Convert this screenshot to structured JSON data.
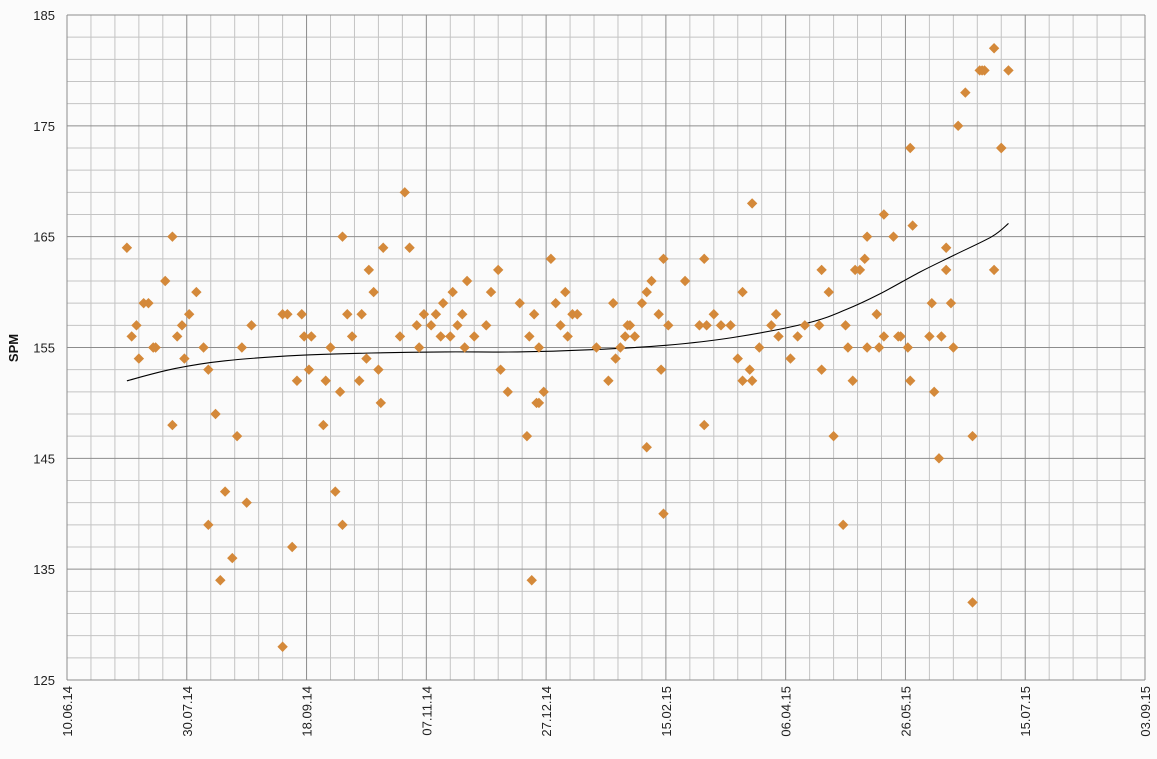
{
  "chart_data": {
    "type": "scatter",
    "ylabel": "SPM",
    "ylim": [
      125,
      185
    ],
    "y_ticks": [
      "125",
      "135",
      "145",
      "155",
      "165",
      "175",
      "185"
    ],
    "xlim": [
      "2014-06-10",
      "2015-09-03"
    ],
    "x_ticks": [
      "10.06.14",
      "30.07.14",
      "18.09.14",
      "07.11.14",
      "27.12.14",
      "15.02.15",
      "06.04.15",
      "26.05.15",
      "15.07.15",
      "03.09.15"
    ],
    "grid": true,
    "marker": "diamond",
    "colors": {
      "points": "#d4893a",
      "trend": "#000000",
      "grid_major": "#8c8c8c",
      "grid_minor": "#c4c4c4"
    },
    "series": [
      {
        "points": [
          [
            "2014-07-05",
            164
          ],
          [
            "2014-07-07",
            156
          ],
          [
            "2014-07-09",
            157
          ],
          [
            "2014-07-10",
            154
          ],
          [
            "2014-07-12",
            159
          ],
          [
            "2014-07-14",
            159
          ],
          [
            "2014-07-16",
            155
          ],
          [
            "2014-07-17",
            155
          ],
          [
            "2014-07-21",
            161
          ],
          [
            "2014-07-24",
            165
          ],
          [
            "2014-07-24",
            148
          ],
          [
            "2014-07-26",
            156
          ],
          [
            "2014-07-28",
            157
          ],
          [
            "2014-07-29",
            154
          ],
          [
            "2014-07-31",
            158
          ],
          [
            "2014-08-03",
            160
          ],
          [
            "2014-08-06",
            155
          ],
          [
            "2014-08-08",
            153
          ],
          [
            "2014-08-08",
            139
          ],
          [
            "2014-08-11",
            149
          ],
          [
            "2014-08-13",
            134
          ],
          [
            "2014-08-15",
            142
          ],
          [
            "2014-08-18",
            136
          ],
          [
            "2014-08-20",
            147
          ],
          [
            "2014-08-22",
            155
          ],
          [
            "2014-08-24",
            141
          ],
          [
            "2014-08-26",
            157
          ],
          [
            "2014-09-08",
            158
          ],
          [
            "2014-09-08",
            128
          ],
          [
            "2014-09-10",
            158
          ],
          [
            "2014-09-12",
            137
          ],
          [
            "2014-09-14",
            152
          ],
          [
            "2014-09-16",
            158
          ],
          [
            "2014-09-17",
            156
          ],
          [
            "2014-09-19",
            153
          ],
          [
            "2014-09-20",
            156
          ],
          [
            "2014-09-25",
            148
          ],
          [
            "2014-09-26",
            152
          ],
          [
            "2014-09-28",
            155
          ],
          [
            "2014-09-30",
            142
          ],
          [
            "2014-10-02",
            151
          ],
          [
            "2014-10-03",
            165
          ],
          [
            "2014-10-03",
            139
          ],
          [
            "2014-10-05",
            158
          ],
          [
            "2014-10-07",
            156
          ],
          [
            "2014-10-10",
            152
          ],
          [
            "2014-10-11",
            158
          ],
          [
            "2014-10-13",
            154
          ],
          [
            "2014-10-14",
            162
          ],
          [
            "2014-10-16",
            160
          ],
          [
            "2014-10-18",
            153
          ],
          [
            "2014-10-19",
            150
          ],
          [
            "2014-10-20",
            164
          ],
          [
            "2014-10-27",
            156
          ],
          [
            "2014-10-29",
            169
          ],
          [
            "2014-10-31",
            164
          ],
          [
            "2014-11-03",
            157
          ],
          [
            "2014-11-04",
            155
          ],
          [
            "2014-11-06",
            158
          ],
          [
            "2014-11-09",
            157
          ],
          [
            "2014-11-11",
            158
          ],
          [
            "2014-11-13",
            156
          ],
          [
            "2014-11-14",
            159
          ],
          [
            "2014-11-17",
            156
          ],
          [
            "2014-11-18",
            160
          ],
          [
            "2014-11-20",
            157
          ],
          [
            "2014-11-22",
            158
          ],
          [
            "2014-11-23",
            155
          ],
          [
            "2014-11-24",
            161
          ],
          [
            "2014-11-27",
            156
          ],
          [
            "2014-12-02",
            157
          ],
          [
            "2014-12-04",
            160
          ],
          [
            "2014-12-07",
            162
          ],
          [
            "2014-12-08",
            153
          ],
          [
            "2014-12-11",
            151
          ],
          [
            "2014-12-16",
            159
          ],
          [
            "2014-12-19",
            147
          ],
          [
            "2014-12-20",
            156
          ],
          [
            "2014-12-21",
            134
          ],
          [
            "2014-12-22",
            158
          ],
          [
            "2014-12-23",
            150
          ],
          [
            "2014-12-24",
            155
          ],
          [
            "2014-12-24",
            150
          ],
          [
            "2014-12-26",
            151
          ],
          [
            "2014-12-29",
            163
          ],
          [
            "2014-12-31",
            159
          ],
          [
            "2015-01-02",
            157
          ],
          [
            "2015-01-04",
            160
          ],
          [
            "2015-01-05",
            156
          ],
          [
            "2015-01-07",
            158
          ],
          [
            "2015-01-09",
            158
          ],
          [
            "2015-01-17",
            155
          ],
          [
            "2015-01-22",
            152
          ],
          [
            "2015-01-24",
            159
          ],
          [
            "2015-01-25",
            154
          ],
          [
            "2015-01-27",
            155
          ],
          [
            "2015-01-29",
            156
          ],
          [
            "2015-01-30",
            157
          ],
          [
            "2015-01-31",
            157
          ],
          [
            "2015-02-02",
            156
          ],
          [
            "2015-02-05",
            159
          ],
          [
            "2015-02-07",
            146
          ],
          [
            "2015-02-07",
            160
          ],
          [
            "2015-02-09",
            161
          ],
          [
            "2015-02-12",
            158
          ],
          [
            "2015-02-13",
            153
          ],
          [
            "2015-02-14",
            163
          ],
          [
            "2015-02-14",
            140
          ],
          [
            "2015-02-16",
            157
          ],
          [
            "2015-02-23",
            161
          ],
          [
            "2015-03-01",
            157
          ],
          [
            "2015-03-03",
            163
          ],
          [
            "2015-03-03",
            148
          ],
          [
            "2015-03-04",
            157
          ],
          [
            "2015-03-07",
            158
          ],
          [
            "2015-03-10",
            157
          ],
          [
            "2015-03-14",
            157
          ],
          [
            "2015-03-17",
            154
          ],
          [
            "2015-03-19",
            160
          ],
          [
            "2015-03-19",
            152
          ],
          [
            "2015-03-22",
            153
          ],
          [
            "2015-03-23",
            152
          ],
          [
            "2015-03-23",
            168
          ],
          [
            "2015-03-26",
            155
          ],
          [
            "2015-03-31",
            157
          ],
          [
            "2015-04-02",
            158
          ],
          [
            "2015-04-03",
            156
          ],
          [
            "2015-04-08",
            154
          ],
          [
            "2015-04-11",
            156
          ],
          [
            "2015-04-14",
            157
          ],
          [
            "2015-04-20",
            157
          ],
          [
            "2015-04-21",
            153
          ],
          [
            "2015-04-21",
            162
          ],
          [
            "2015-04-24",
            160
          ],
          [
            "2015-04-26",
            147
          ],
          [
            "2015-04-30",
            139
          ],
          [
            "2015-05-01",
            157
          ],
          [
            "2015-05-02",
            155
          ],
          [
            "2015-05-04",
            152
          ],
          [
            "2015-05-05",
            162
          ],
          [
            "2015-05-07",
            162
          ],
          [
            "2015-05-09",
            163
          ],
          [
            "2015-05-10",
            165
          ],
          [
            "2015-05-10",
            155
          ],
          [
            "2015-05-14",
            158
          ],
          [
            "2015-05-15",
            155
          ],
          [
            "2015-05-17",
            167
          ],
          [
            "2015-05-17",
            156
          ],
          [
            "2015-05-21",
            165
          ],
          [
            "2015-05-23",
            156
          ],
          [
            "2015-05-24",
            156
          ],
          [
            "2015-05-27",
            155
          ],
          [
            "2015-05-28",
            152
          ],
          [
            "2015-05-28",
            173
          ],
          [
            "2015-05-29",
            166
          ],
          [
            "2015-06-05",
            156
          ],
          [
            "2015-06-06",
            159
          ],
          [
            "2015-06-07",
            151
          ],
          [
            "2015-06-09",
            145
          ],
          [
            "2015-06-10",
            156
          ],
          [
            "2015-06-12",
            162
          ],
          [
            "2015-06-12",
            164
          ],
          [
            "2015-06-14",
            159
          ],
          [
            "2015-06-15",
            155
          ],
          [
            "2015-06-17",
            175
          ],
          [
            "2015-06-20",
            178
          ],
          [
            "2015-06-23",
            147
          ],
          [
            "2015-06-23",
            132
          ],
          [
            "2015-06-26",
            180
          ],
          [
            "2015-06-27",
            180
          ],
          [
            "2015-06-28",
            180
          ],
          [
            "2015-07-02",
            162
          ],
          [
            "2015-07-02",
            182
          ],
          [
            "2015-07-05",
            173
          ],
          [
            "2015-07-05",
            173
          ],
          [
            "2015-07-08",
            180
          ]
        ]
      }
    ],
    "trendline": {
      "type": "polynomial",
      "points": [
        [
          "2014-07-05",
          152.0
        ],
        [
          "2014-07-25",
          153.1
        ],
        [
          "2014-08-15",
          153.8
        ],
        [
          "2014-09-15",
          154.3
        ],
        [
          "2014-10-15",
          154.5
        ],
        [
          "2014-11-15",
          154.6
        ],
        [
          "2014-12-15",
          154.6
        ],
        [
          "2015-01-15",
          154.8
        ],
        [
          "2015-02-15",
          155.2
        ],
        [
          "2015-03-15",
          155.9
        ],
        [
          "2015-04-15",
          157.2
        ],
        [
          "2015-05-01",
          158.4
        ],
        [
          "2015-05-15",
          159.8
        ],
        [
          "2015-06-01",
          161.8
        ],
        [
          "2015-06-15",
          163.3
        ],
        [
          "2015-07-01",
          165.0
        ],
        [
          "2015-07-08",
          166.2
        ]
      ]
    }
  }
}
